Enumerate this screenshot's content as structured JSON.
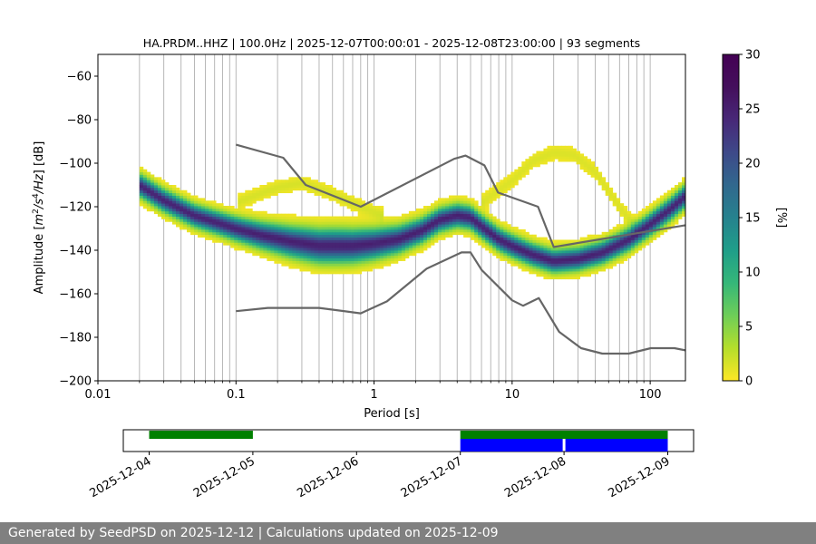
{
  "chart_data": {
    "type": "heatmap",
    "title": "HA.PRDM..HHZ | 100.0Hz | 2025-12-07T00:00:01 - 2025-12-08T23:00:00 | 93 segments",
    "xlabel": "Period [s]",
    "ylabel": "Amplitude [m²/s⁴/Hz] [dB]",
    "x_scale": "log",
    "xlim": [
      0.01,
      180
    ],
    "ylim": [
      -200,
      -50
    ],
    "x_ticks": [
      {
        "value": 0.01,
        "label": "0.01"
      },
      {
        "value": 0.1,
        "label": "0.1"
      },
      {
        "value": 1,
        "label": "1"
      },
      {
        "value": 10,
        "label": "10"
      },
      {
        "value": 100,
        "label": "100"
      }
    ],
    "y_ticks": [
      -60,
      -80,
      -100,
      -120,
      -140,
      -160,
      -180,
      -200
    ],
    "y_tick_labels": [
      "−60",
      "−80",
      "−100",
      "−120",
      "−140",
      "−160",
      "−180",
      "−200"
    ],
    "grid": "vertical, log-period",
    "colorbar": {
      "label": "[%]",
      "range": [
        0,
        30
      ],
      "ticks": [
        0,
        5,
        10,
        15,
        20,
        25,
        30
      ],
      "colormap": "viridis_r"
    },
    "density": {
      "x_range": [
        0.02,
        180
      ],
      "main_ridge": [
        {
          "period": 0.02,
          "db": -110
        },
        {
          "period": 0.03,
          "db": -117
        },
        {
          "period": 0.05,
          "db": -124
        },
        {
          "period": 0.08,
          "db": -128
        },
        {
          "period": 0.1,
          "db": -130
        },
        {
          "period": 0.15,
          "db": -133
        },
        {
          "period": 0.25,
          "db": -136
        },
        {
          "period": 0.4,
          "db": -138
        },
        {
          "period": 0.7,
          "db": -138
        },
        {
          "period": 1,
          "db": -137
        },
        {
          "period": 1.5,
          "db": -135
        },
        {
          "period": 2.2,
          "db": -131
        },
        {
          "period": 3,
          "db": -126
        },
        {
          "period": 4,
          "db": -124
        },
        {
          "period": 5,
          "db": -125
        },
        {
          "period": 6,
          "db": -129
        },
        {
          "period": 8,
          "db": -135
        },
        {
          "period": 10,
          "db": -138
        },
        {
          "period": 14,
          "db": -142
        },
        {
          "period": 20,
          "db": -145
        },
        {
          "period": 30,
          "db": -144
        },
        {
          "period": 45,
          "db": -141
        },
        {
          "period": 70,
          "db": -135
        },
        {
          "period": 100,
          "db": -128
        },
        {
          "period": 140,
          "db": -121
        },
        {
          "period": 180,
          "db": -115
        }
      ],
      "upper_branch": [
        {
          "period": 0.1,
          "db": -118
        },
        {
          "period": 0.2,
          "db": -111
        },
        {
          "period": 0.3,
          "db": -109
        },
        {
          "period": 0.5,
          "db": -114
        },
        {
          "period": 0.8,
          "db": -120
        },
        {
          "period": 1.2,
          "db": -124
        }
      ],
      "secondary_hump": [
        {
          "period": 6,
          "db": -118
        },
        {
          "period": 10,
          "db": -108
        },
        {
          "period": 14,
          "db": -99
        },
        {
          "period": 20,
          "db": -95
        },
        {
          "period": 28,
          "db": -96
        },
        {
          "period": 40,
          "db": -104
        },
        {
          "period": 60,
          "db": -120
        },
        {
          "period": 80,
          "db": -130
        }
      ],
      "peak_percent": 30
    },
    "series": [
      {
        "role": "high noise model",
        "color": "#666666",
        "points": [
          [
            0.1,
            -91.5
          ],
          [
            0.22,
            -97.5
          ],
          [
            0.32,
            -110
          ],
          [
            0.8,
            -120
          ],
          [
            3.8,
            -98
          ],
          [
            4.6,
            -96.5
          ],
          [
            6.3,
            -101
          ],
          [
            7.9,
            -113.5
          ],
          [
            15.4,
            -120
          ],
          [
            20,
            -138.5
          ],
          [
            180,
            -128.5
          ]
        ]
      },
      {
        "role": "low noise model",
        "color": "#666666",
        "points": [
          [
            0.1,
            -168
          ],
          [
            0.17,
            -166.5
          ],
          [
            0.4,
            -166.5
          ],
          [
            0.8,
            -169
          ],
          [
            1.24,
            -163.5
          ],
          [
            2.4,
            -148.5
          ],
          [
            4.3,
            -141
          ],
          [
            5.0,
            -141
          ],
          [
            6.0,
            -149
          ],
          [
            10,
            -163
          ],
          [
            12,
            -165.5
          ],
          [
            15.6,
            -162
          ],
          [
            21.9,
            -177.5
          ],
          [
            31.6,
            -185
          ],
          [
            45,
            -187.5
          ],
          [
            70,
            -187.5
          ],
          [
            101,
            -185
          ],
          [
            150,
            -185
          ],
          [
            180,
            -186
          ]
        ]
      }
    ]
  },
  "timeline": {
    "ticks": [
      "2025-12-04",
      "2025-12-05",
      "2025-12-06",
      "2025-12-07",
      "2025-12-08",
      "2025-12-09"
    ],
    "green_segments": [
      [
        "2025-12-04",
        "2025-12-05"
      ],
      [
        "2025-12-07",
        "2025-12-09"
      ]
    ],
    "blue_segments": [
      [
        "2025-12-07",
        "2025-12-08"
      ],
      [
        "2025-12-08",
        "2025-12-09"
      ]
    ],
    "green_color": "#008000",
    "blue_color": "#0000ff"
  },
  "footer": {
    "text": "Generated by SeedPSD on 2025-12-12 | Calculations updated on 2025-12-09"
  }
}
